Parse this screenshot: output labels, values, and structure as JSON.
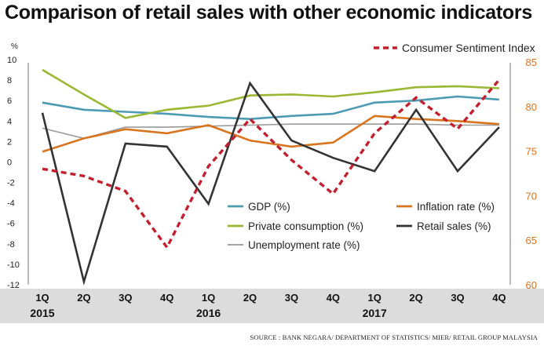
{
  "chart_data": {
    "type": "line",
    "title": "Comparison of retail sales with other economic indicators",
    "source": "SOURCE : BANK NEGARA/ DEPARTMENT OF STATISTICS/ MIER/ RETAIL GROUP MALAYSIA",
    "left_axis": {
      "label": "%",
      "ylim": [
        -12,
        10
      ],
      "ticks": [
        10,
        8,
        6,
        4,
        2,
        0,
        -2,
        -4,
        -6,
        -8,
        -10,
        -12
      ]
    },
    "right_axis": {
      "ylim": [
        60,
        87
      ],
      "ticks": [
        85,
        80,
        75,
        70,
        65,
        60
      ]
    },
    "categories": [
      "1Q",
      "2Q",
      "3Q",
      "4Q",
      "1Q",
      "2Q",
      "3Q",
      "4Q",
      "1Q",
      "2Q",
      "3Q",
      "4Q"
    ],
    "years": [
      {
        "label": "2015",
        "index": 0
      },
      {
        "label": "2016",
        "index": 4
      },
      {
        "label": "2017",
        "index": 8
      }
    ],
    "series": [
      {
        "name": "Unemployment rate (%)",
        "axis": "left",
        "color": "#9a9a9a",
        "style": "solid",
        "values": [
          3.3,
          2.3,
          3.4,
          3.4,
          3.5,
          3.6,
          3.7,
          3.7,
          3.7,
          3.7,
          3.6,
          3.6
        ]
      },
      {
        "name": "Inflation rate (%)",
        "axis": "left",
        "color": "#d9741f",
        "style": "solid",
        "values": [
          1.0,
          2.3,
          3.2,
          2.8,
          3.6,
          2.1,
          1.5,
          1.9,
          4.5,
          4.2,
          4.0,
          3.7
        ]
      },
      {
        "name": "GDP (%)",
        "axis": "left",
        "color": "#4d9bb3",
        "style": "solid",
        "values": [
          5.8,
          5.1,
          4.9,
          4.7,
          4.4,
          4.2,
          4.5,
          4.7,
          5.8,
          6.0,
          6.4,
          6.1
        ]
      },
      {
        "name": "Private consumption (%)",
        "axis": "left",
        "color": "#9ab833",
        "style": "solid",
        "values": [
          9.0,
          6.6,
          4.3,
          5.1,
          5.5,
          6.5,
          6.6,
          6.4,
          6.8,
          7.3,
          7.4,
          7.2
        ]
      },
      {
        "name": "Retail sales (%)",
        "axis": "left",
        "color": "#333333",
        "style": "solid",
        "values": [
          4.8,
          -11.7,
          1.8,
          1.5,
          -4.1,
          7.7,
          2.1,
          0.4,
          -0.9,
          5.1,
          -0.9,
          3.4
        ]
      },
      {
        "name": "Consumer Sentiment Index",
        "axis": "right",
        "color": "#c2202f",
        "style": "dashed",
        "values": [
          73.0,
          72.2,
          70.5,
          64.2,
          73.3,
          78.6,
          74.0,
          70.2,
          77.0,
          81.0,
          77.5,
          83.0
        ]
      }
    ],
    "legend": {
      "top": {
        "label": "Consumer Sentiment Index",
        "color": "#c2202f"
      },
      "items": [
        {
          "label": "GDP (%)",
          "color": "#4d9bb3"
        },
        {
          "label": "Inflation rate (%)",
          "color": "#d9741f"
        },
        {
          "label": "Private consumption (%)",
          "color": "#9ab833"
        },
        {
          "label": "Retail sales (%)",
          "color": "#333333"
        },
        {
          "label": "Unemployment rate (%)",
          "color": "#9a9a9a"
        }
      ]
    }
  }
}
